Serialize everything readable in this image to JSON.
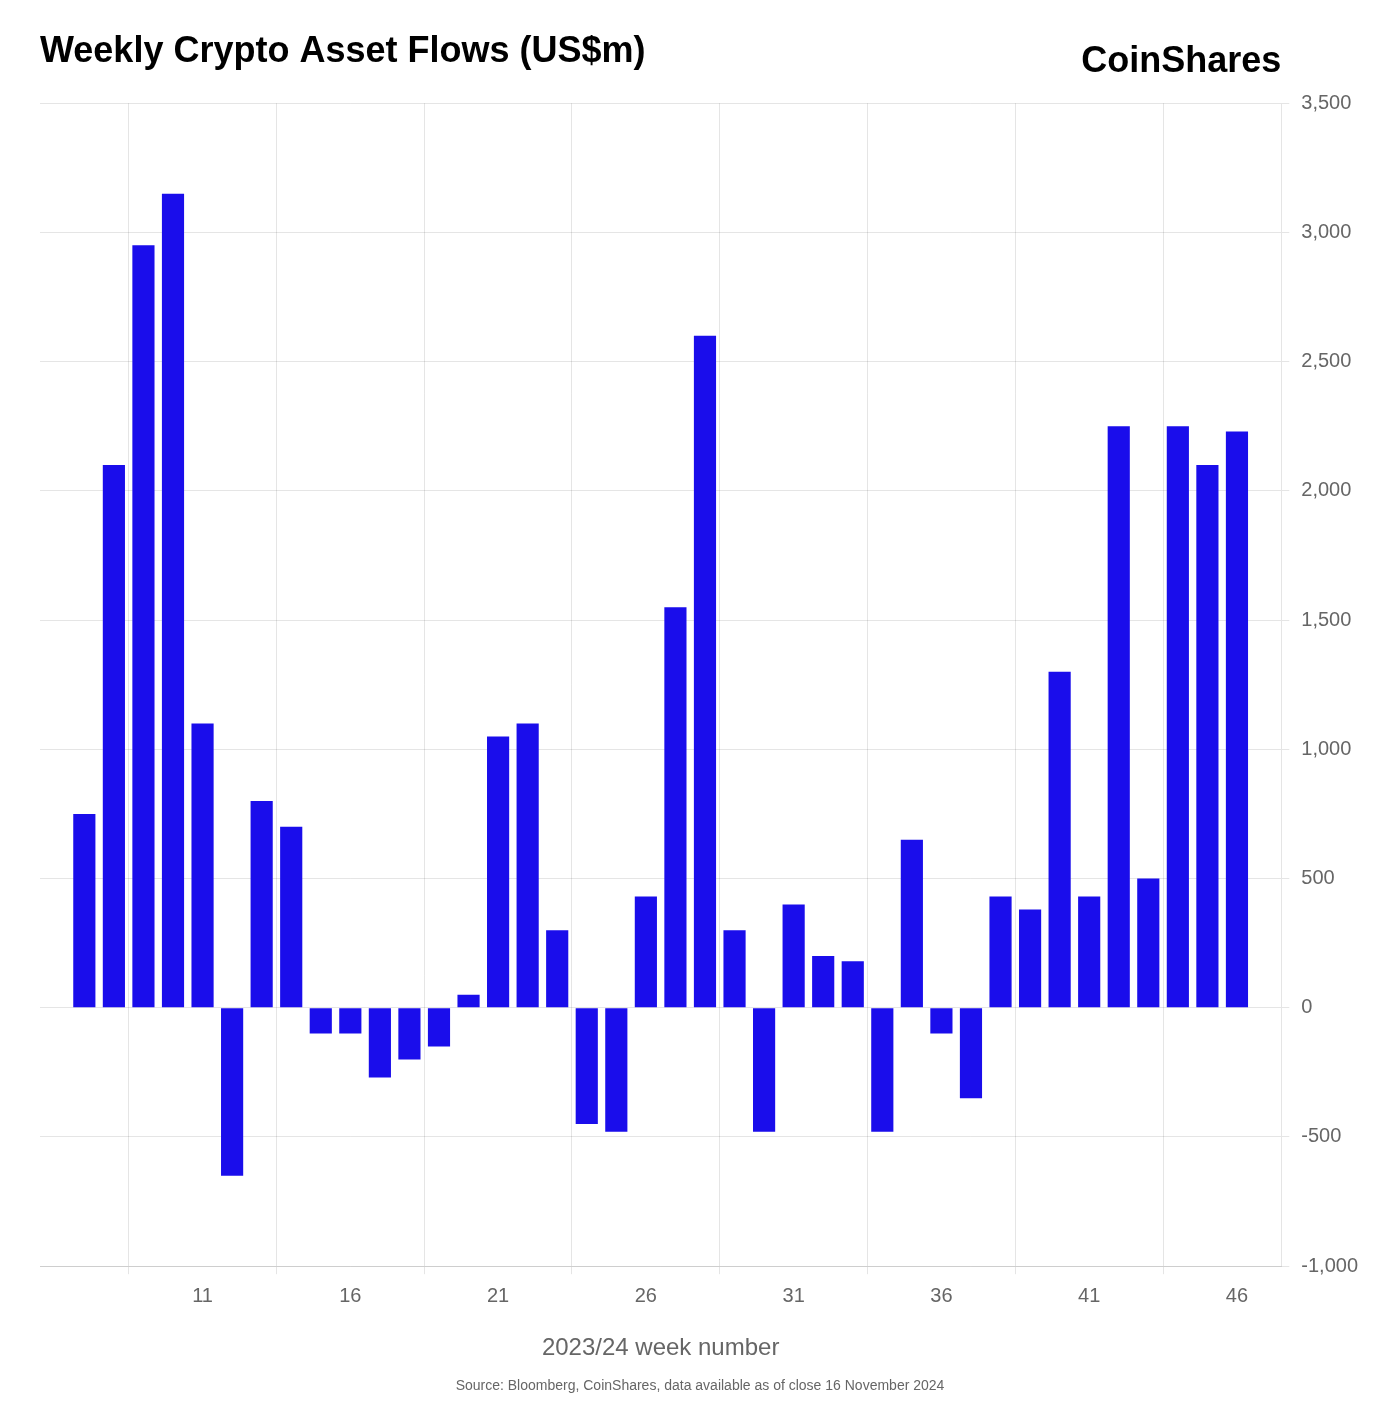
{
  "chart_data": {
    "type": "bar",
    "title": "Weekly Crypto Asset Flows (US$m)",
    "annotations": [
      "CoinShares",
      "Source: Bloomberg, CoinShares, data available as of close 16 November 2024"
    ],
    "xlabel": "2023/24 week number",
    "x": [
      7,
      8,
      9,
      10,
      11,
      12,
      13,
      14,
      15,
      16,
      17,
      18,
      19,
      20,
      21,
      22,
      23,
      24,
      25,
      26,
      27,
      28,
      29,
      30,
      31,
      32,
      33,
      34,
      35,
      36,
      37,
      38,
      39,
      40,
      41,
      42,
      43,
      44,
      45,
      46
    ],
    "values": [
      750,
      2100,
      2950,
      3150,
      1100,
      -650,
      800,
      700,
      -100,
      -100,
      -270,
      -200,
      -150,
      50,
      1050,
      1100,
      300,
      -450,
      -480,
      430,
      1550,
      2600,
      300,
      -480,
      400,
      200,
      180,
      -480,
      650,
      -100,
      -350,
      430,
      380,
      1300,
      430,
      2250,
      500,
      2250,
      2100,
      2230
    ],
    "color": "#1a0deb",
    "xlim": [
      5.5,
      47.5
    ],
    "xticks": [
      11,
      16,
      21,
      26,
      31,
      36,
      41,
      46
    ],
    "ylim": [
      -1000,
      3500
    ],
    "yticks": [
      {
        "value": -1000,
        "label": "-1,000"
      },
      -500,
      0,
      500,
      {
        "value": 1000,
        "label": "1,000"
      },
      {
        "value": 1500,
        "label": "1,500"
      },
      {
        "value": 2000,
        "label": "2,000"
      },
      {
        "value": 2500,
        "label": "2,500"
      },
      {
        "value": 3000,
        "label": "3,000"
      },
      {
        "value": 3500,
        "label": "3,500"
      }
    ],
    "grid": true
  }
}
